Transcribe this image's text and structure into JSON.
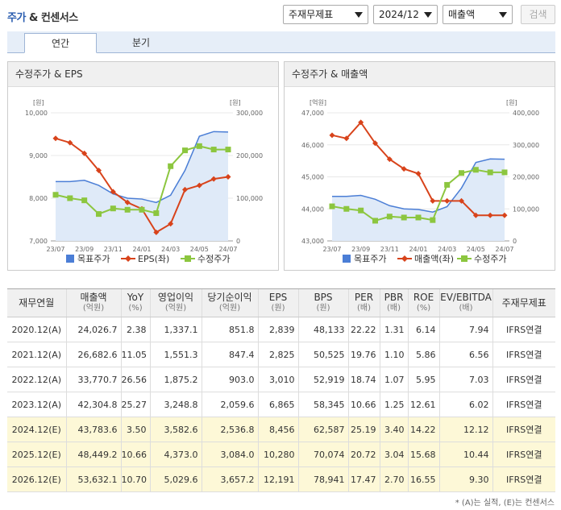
{
  "header": {
    "title_part1": "주가",
    "title_part2": "& 컨센서스",
    "select_report": "주재무제표",
    "select_period": "2024/12",
    "select_item": "매출액",
    "search_label": "검색"
  },
  "tabs": [
    {
      "label": "연간",
      "active": true
    },
    {
      "label": "분기",
      "active": false
    }
  ],
  "colors": {
    "target_price": "#4b7ed6",
    "eps": "#d8431b",
    "price": "#8cc63f",
    "area_fill": "#dfeaf8"
  },
  "charts": [
    {
      "title": "수정주가 & EPS",
      "left_unit": "[원]",
      "right_unit": "[원]",
      "left_ticks": [
        "10,000",
        "9,000",
        "8,000",
        "7,000"
      ],
      "right_ticks": [
        "300,000",
        "200,000",
        "100,000",
        "0"
      ],
      "x_ticks": [
        "23/07",
        "23/09",
        "23/11",
        "24/01",
        "24/03",
        "24/05",
        "24/07"
      ],
      "legend": [
        "목표주가",
        "EPS(좌)",
        "수정주가"
      ]
    },
    {
      "title": "수정주가 & 매출액",
      "left_unit": "[억원]",
      "right_unit": "[원]",
      "left_ticks": [
        "47,000",
        "46,000",
        "45,000",
        "44,000",
        "43,000"
      ],
      "right_ticks": [
        "400,000",
        "300,000",
        "200,000",
        "100,000",
        "0"
      ],
      "x_ticks": [
        "23/07",
        "23/09",
        "23/11",
        "24/01",
        "24/03",
        "24/05",
        "24/07"
      ],
      "legend": [
        "목표주가",
        "매출액(좌)",
        "수정주가"
      ]
    }
  ],
  "chart_data": [
    {
      "type": "line",
      "title": "수정주가 & EPS",
      "x": [
        "23/07",
        "23/08",
        "23/09",
        "23/10",
        "23/11",
        "23/12",
        "24/01",
        "24/02",
        "24/03",
        "24/04",
        "24/05",
        "24/06",
        "24/07"
      ],
      "ylim_left": [
        7000,
        10000
      ],
      "ylim_right": [
        0,
        300000
      ],
      "series": [
        {
          "name": "목표주가",
          "axis": "right",
          "values": [
            139000,
            139000,
            142000,
            130000,
            110000,
            100000,
            98000,
            90000,
            107000,
            165000,
            245000,
            256000,
            255000
          ]
        },
        {
          "name": "EPS(좌)",
          "axis": "left",
          "values": [
            9400,
            9300,
            9050,
            8650,
            8150,
            7900,
            7750,
            7200,
            7400,
            8200,
            8300,
            8450,
            8500
          ]
        },
        {
          "name": "수정주가",
          "axis": "right",
          "values": [
            108000,
            100000,
            95000,
            63000,
            76000,
            73000,
            73000,
            65000,
            175000,
            212000,
            222000,
            214000,
            214000
          ]
        }
      ]
    },
    {
      "type": "line",
      "title": "수정주가 & 매출액",
      "x": [
        "23/07",
        "23/08",
        "23/09",
        "23/10",
        "23/11",
        "23/12",
        "24/01",
        "24/02",
        "24/03",
        "24/04",
        "24/05",
        "24/06",
        "24/07"
      ],
      "ylim_left": [
        43000,
        47000
      ],
      "ylim_right": [
        0,
        400000
      ],
      "series": [
        {
          "name": "목표주가",
          "axis": "right",
          "values": [
            139000,
            139000,
            142000,
            130000,
            110000,
            100000,
            98000,
            90000,
            107000,
            165000,
            245000,
            256000,
            255000
          ]
        },
        {
          "name": "매출액(좌)",
          "axis": "left",
          "values": [
            46300,
            46200,
            46700,
            46050,
            45550,
            45250,
            45100,
            44250,
            44250,
            44250,
            43800,
            43800,
            43800
          ]
        },
        {
          "name": "수정주가",
          "axis": "right",
          "values": [
            108000,
            100000,
            95000,
            63000,
            76000,
            73000,
            73000,
            65000,
            175000,
            212000,
            222000,
            214000,
            214000
          ]
        }
      ]
    }
  ],
  "table": {
    "headers": [
      {
        "label": "재무연월",
        "unit": ""
      },
      {
        "label": "매출액",
        "unit": "(억원)"
      },
      {
        "label": "YoY",
        "unit": "(%)"
      },
      {
        "label": "영업이익",
        "unit": "(억원)"
      },
      {
        "label": "당기순이익",
        "unit": "(억원)"
      },
      {
        "label": "EPS",
        "unit": "(원)"
      },
      {
        "label": "BPS",
        "unit": "(원)"
      },
      {
        "label": "PER",
        "unit": "(배)"
      },
      {
        "label": "PBR",
        "unit": "(배)"
      },
      {
        "label": "ROE",
        "unit": "(%)"
      },
      {
        "label": "EV/EBITDA",
        "unit": "(배)"
      },
      {
        "label": "주재무제표",
        "unit": ""
      }
    ],
    "rows": [
      {
        "estimate": false,
        "cells": [
          "2020.12(A)",
          "24,026.7",
          "2.38",
          "1,337.1",
          "851.8",
          "2,839",
          "48,133",
          "22.22",
          "1.31",
          "6.14",
          "7.94",
          "IFRS연결"
        ]
      },
      {
        "estimate": false,
        "cells": [
          "2021.12(A)",
          "26,682.6",
          "11.05",
          "1,551.3",
          "847.4",
          "2,825",
          "50,525",
          "19.76",
          "1.10",
          "5.86",
          "6.56",
          "IFRS연결"
        ]
      },
      {
        "estimate": false,
        "cells": [
          "2022.12(A)",
          "33,770.7",
          "26.56",
          "1,875.2",
          "903.0",
          "3,010",
          "52,919",
          "18.74",
          "1.07",
          "5.95",
          "7.03",
          "IFRS연결"
        ]
      },
      {
        "estimate": false,
        "cells": [
          "2023.12(A)",
          "42,304.8",
          "25.27",
          "3,248.8",
          "2,059.6",
          "6,865",
          "58,345",
          "10.66",
          "1.25",
          "12.61",
          "6.02",
          "IFRS연결"
        ]
      },
      {
        "estimate": true,
        "cells": [
          "2024.12(E)",
          "43,783.6",
          "3.50",
          "3,582.6",
          "2,536.8",
          "8,456",
          "62,587",
          "25.19",
          "3.40",
          "14.22",
          "12.12",
          "IFRS연결"
        ]
      },
      {
        "estimate": true,
        "cells": [
          "2025.12(E)",
          "48,449.2",
          "10.66",
          "4,373.0",
          "3,084.0",
          "10,280",
          "70,074",
          "20.72",
          "3.04",
          "15.68",
          "10.44",
          "IFRS연결"
        ]
      },
      {
        "estimate": true,
        "cells": [
          "2026.12(E)",
          "53,632.1",
          "10.70",
          "5,029.6",
          "3,657.2",
          "12,191",
          "78,941",
          "17.47",
          "2.70",
          "16.55",
          "9.30",
          "IFRS연결"
        ]
      }
    ]
  },
  "footnote": "* (A)는 실적, (E)는 컨센서스"
}
